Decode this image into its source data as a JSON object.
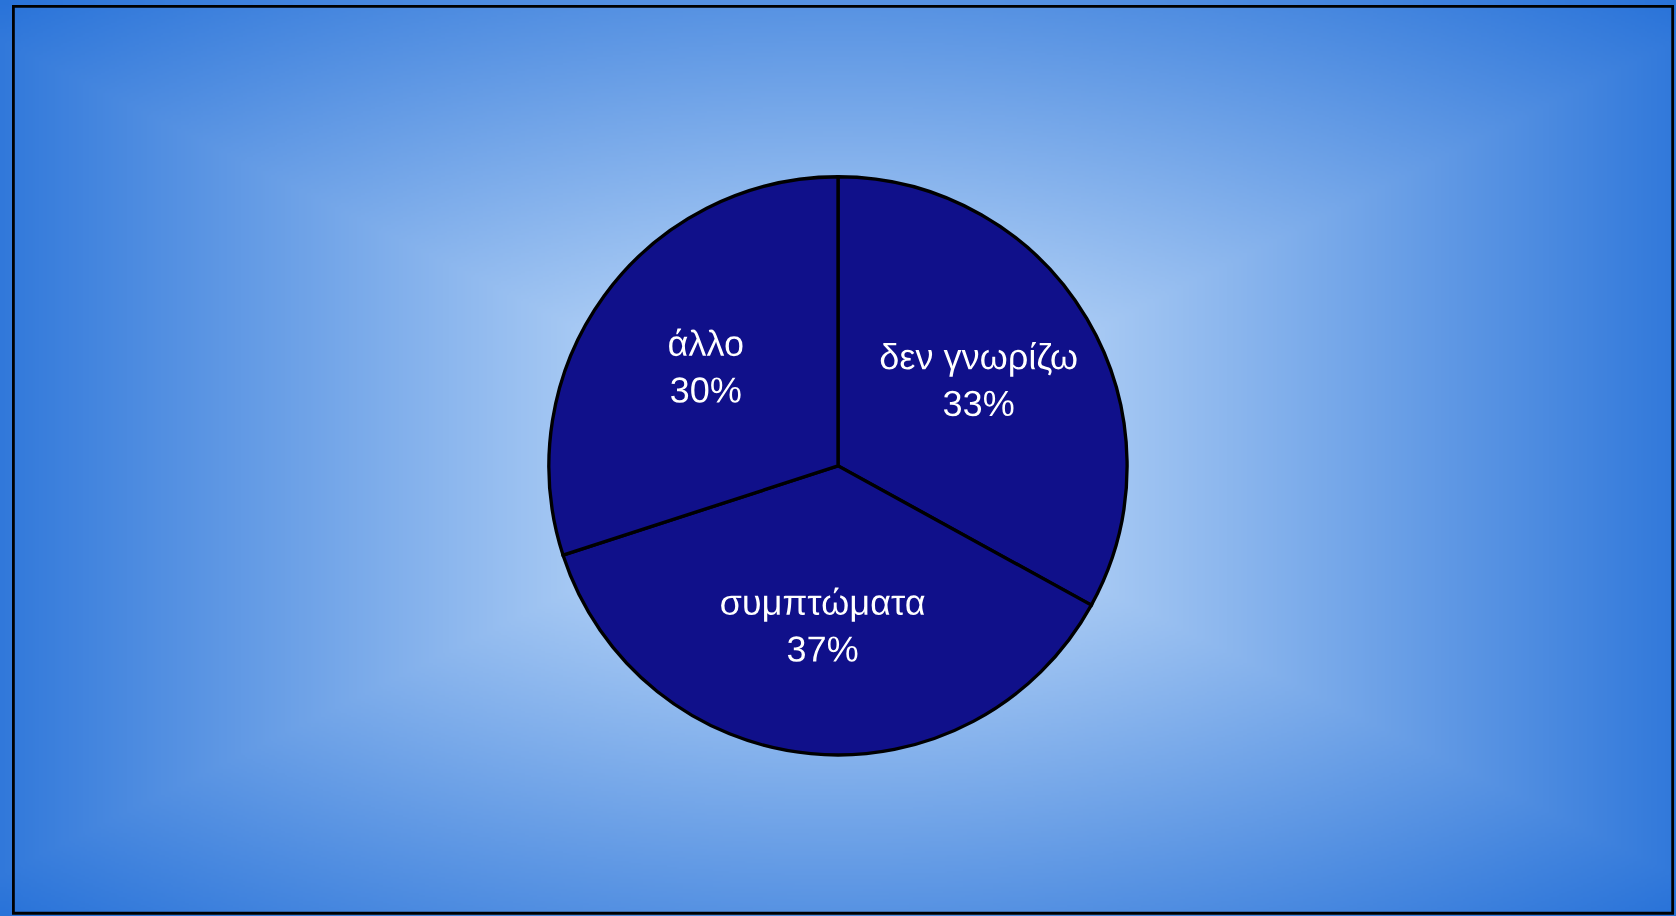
{
  "chart_data": {
    "type": "pie",
    "categories": [
      "δεν γνωρίζω",
      "συμπτώματα",
      "άλλο"
    ],
    "values": [
      33,
      37,
      30
    ],
    "value_labels": [
      "33%",
      "37%",
      "30%"
    ],
    "colors": [
      "#10108a",
      "#10108a",
      "#10108a"
    ]
  }
}
